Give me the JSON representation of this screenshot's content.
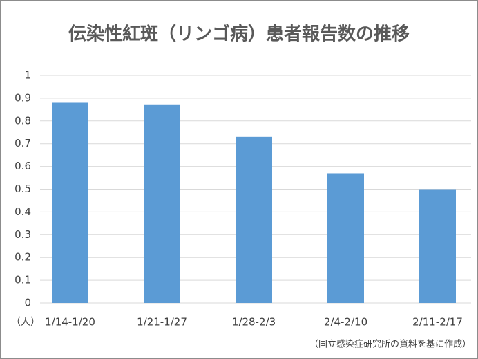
{
  "chart_data": {
    "type": "bar",
    "title": "伝染性紅斑（リンゴ病）患者報告数の推移",
    "unit_label": "（人）",
    "source_note": "（国立感染症研究所の資料を基に作成）",
    "categories": [
      "1/14-1/20",
      "1/21-1/27",
      "1/28-2/3",
      "2/4-2/10",
      "2/11-2/17"
    ],
    "values": [
      0.88,
      0.87,
      0.73,
      0.57,
      0.5
    ],
    "color": "#5b9bd5",
    "ylim": [
      0,
      1
    ],
    "yticks": [
      0,
      0.1,
      0.2,
      0.3,
      0.4,
      0.5,
      0.6,
      0.7,
      0.8,
      0.9,
      1
    ],
    "grid": true
  }
}
